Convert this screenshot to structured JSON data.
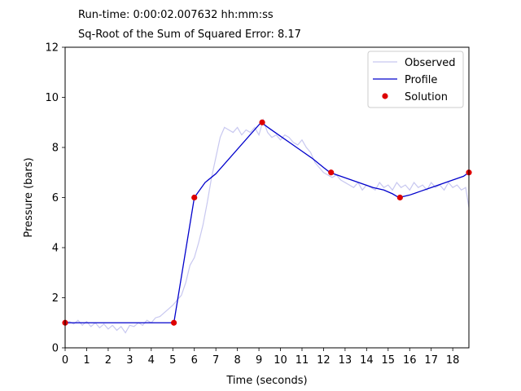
{
  "header": {
    "runtime_label": "Run-time:",
    "runtime_value": "0:00:02.007632",
    "runtime_unit": "hh:mm:ss",
    "error_label": "Sq-Root of the Sum of Squared Error:",
    "error_value": "8.17"
  },
  "chart_data": {
    "type": "line",
    "title": "",
    "xlabel": "Time (seconds)",
    "ylabel": "Pressure (bars)",
    "xlim": [
      0,
      18.75
    ],
    "ylim": [
      0,
      12
    ],
    "xticks": [
      0,
      1,
      2,
      3,
      4,
      5,
      6,
      7,
      8,
      9,
      10,
      11,
      12,
      13,
      14,
      15,
      16,
      17,
      18
    ],
    "yticks": [
      0,
      2,
      4,
      6,
      8,
      10,
      12
    ],
    "grid": false,
    "legend": {
      "placement": "top-right",
      "entries": [
        "Observed",
        "Profile",
        "Solution"
      ]
    },
    "colors": {
      "observed": "#c8c8f0",
      "profile": "#0000cc",
      "solution": "#dd0000"
    },
    "series": [
      {
        "name": "Observed",
        "style": "line",
        "x": [
          0,
          0.2,
          0.4,
          0.6,
          0.8,
          1.0,
          1.2,
          1.4,
          1.6,
          1.8,
          2.0,
          2.2,
          2.4,
          2.6,
          2.8,
          3.0,
          3.2,
          3.4,
          3.6,
          3.8,
          4.0,
          4.2,
          4.4,
          4.6,
          4.8,
          5.0,
          5.2,
          5.4,
          5.6,
          5.8,
          6.0,
          6.2,
          6.4,
          6.6,
          6.8,
          7.0,
          7.2,
          7.4,
          7.6,
          7.8,
          8.0,
          8.2,
          8.4,
          8.6,
          8.8,
          9.0,
          9.2,
          9.4,
          9.6,
          9.8,
          10.0,
          10.2,
          10.4,
          10.6,
          10.8,
          11.0,
          11.2,
          11.4,
          11.6,
          11.8,
          12.0,
          12.2,
          12.4,
          12.6,
          12.8,
          13.0,
          13.2,
          13.4,
          13.6,
          13.8,
          14.0,
          14.2,
          14.4,
          14.6,
          14.8,
          15.0,
          15.2,
          15.4,
          15.6,
          15.8,
          16.0,
          16.2,
          16.4,
          16.6,
          16.8,
          17.0,
          17.2,
          17.4,
          17.6,
          17.8,
          18.0,
          18.2,
          18.4,
          18.6,
          18.75
        ],
        "y": [
          1.0,
          1.05,
          0.95,
          1.1,
          0.9,
          1.05,
          0.85,
          1.0,
          0.8,
          0.95,
          0.75,
          0.9,
          0.7,
          0.85,
          0.6,
          0.9,
          0.85,
          1.0,
          0.9,
          1.1,
          1.0,
          1.2,
          1.25,
          1.4,
          1.55,
          1.7,
          1.9,
          2.1,
          2.6,
          3.3,
          3.6,
          4.2,
          4.9,
          5.8,
          6.8,
          7.6,
          8.4,
          8.8,
          8.7,
          8.6,
          8.8,
          8.5,
          8.7,
          8.6,
          8.8,
          8.5,
          9.1,
          8.6,
          8.4,
          8.5,
          8.3,
          8.5,
          8.4,
          8.2,
          8.1,
          8.3,
          8.0,
          7.8,
          7.4,
          7.2,
          7.0,
          6.9,
          6.8,
          6.9,
          6.7,
          6.6,
          6.5,
          6.4,
          6.6,
          6.3,
          6.5,
          6.4,
          6.3,
          6.6,
          6.4,
          6.5,
          6.3,
          6.6,
          6.4,
          6.5,
          6.3,
          6.6,
          6.4,
          6.5,
          6.3,
          6.6,
          6.4,
          6.5,
          6.3,
          6.6,
          6.4,
          6.5,
          6.3,
          6.4,
          5.6
        ]
      },
      {
        "name": "Profile",
        "style": "line",
        "x": [
          0,
          5.05,
          6.0,
          6.5,
          7.0,
          9.1,
          9.5,
          10.0,
          10.5,
          11.0,
          11.5,
          12.0,
          12.3,
          12.8,
          13.3,
          13.8,
          14.3,
          14.8,
          15.2,
          15.5,
          16.0,
          16.5,
          17.0,
          17.5,
          18.0,
          18.5,
          18.75
        ],
        "y": [
          1.0,
          1.0,
          6.0,
          6.6,
          6.95,
          9.0,
          8.75,
          8.45,
          8.15,
          7.85,
          7.55,
          7.2,
          7.0,
          6.85,
          6.7,
          6.55,
          6.4,
          6.3,
          6.15,
          6.0,
          6.1,
          6.25,
          6.4,
          6.55,
          6.7,
          6.85,
          7.0
        ]
      },
      {
        "name": "Solution",
        "style": "scatter",
        "x": [
          0,
          5.05,
          6.0,
          9.15,
          12.35,
          15.55,
          18.75
        ],
        "y": [
          1.0,
          1.0,
          6.0,
          9.0,
          7.0,
          6.0,
          7.0
        ]
      }
    ]
  }
}
